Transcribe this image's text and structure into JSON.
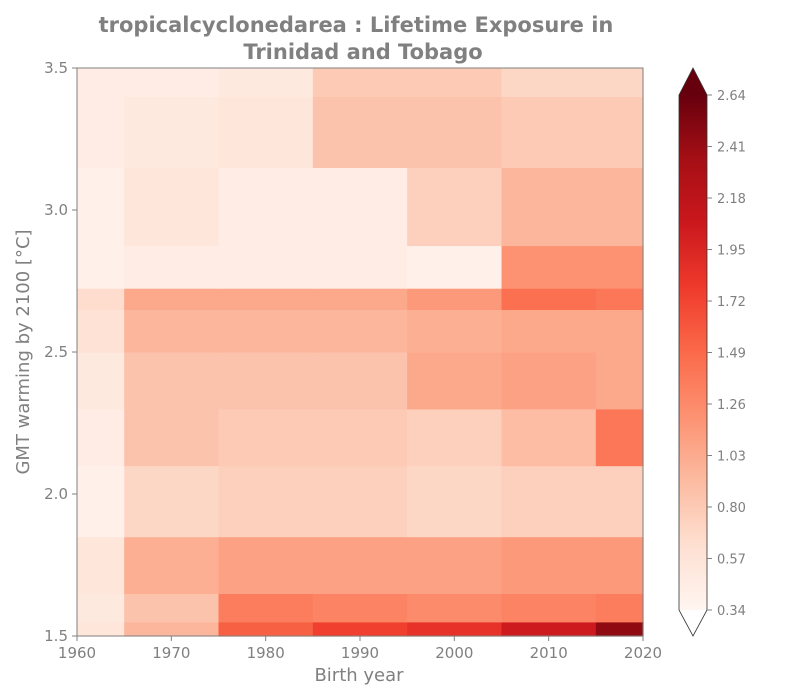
{
  "chart_data": {
    "type": "heatmap",
    "title_line1": "tropicalcyclonedarea : Lifetime Exposure in",
    "title_line2": "Trinidad and Tobago",
    "xlabel": "Birth year",
    "ylabel": "GMT warming by 2100 [°C]",
    "xlim": [
      1960,
      2020
    ],
    "ylim": [
      1.5,
      3.5
    ],
    "xticks": [
      "1960",
      "1970",
      "1980",
      "1990",
      "2000",
      "2010",
      "2020"
    ],
    "yticks": [
      "1.5",
      "2.0",
      "2.5",
      "3.0",
      "3.5"
    ],
    "colormap": "Reds",
    "colorbar": {
      "min": 0.34,
      "max": 2.64,
      "ticks": [
        "0.34",
        "0.57",
        "0.80",
        "1.03",
        "1.26",
        "1.49",
        "1.72",
        "1.95",
        "2.18",
        "2.41",
        "2.64"
      ],
      "extend": "both"
    },
    "x": [
      1960,
      1970,
      1980,
      1990,
      2000,
      2010,
      2020
    ],
    "y": [
      1.5,
      1.6,
      1.7,
      2.0,
      2.2,
      2.4,
      2.6,
      2.7,
      2.75,
      3.0,
      3.3,
      3.5
    ],
    "z": [
      [
        0.55,
        0.95,
        1.55,
        1.75,
        1.85,
        2.05,
        2.45
      ],
      [
        0.5,
        0.85,
        1.35,
        1.3,
        1.25,
        1.3,
        1.35
      ],
      [
        0.55,
        1.0,
        1.1,
        1.1,
        1.1,
        1.15,
        1.15
      ],
      [
        0.4,
        0.7,
        0.75,
        0.75,
        0.7,
        0.75,
        0.75
      ],
      [
        0.45,
        0.85,
        0.8,
        0.8,
        0.75,
        0.9,
        1.4
      ],
      [
        0.5,
        0.85,
        0.85,
        0.85,
        1.05,
        1.1,
        1.05
      ],
      [
        0.6,
        0.95,
        0.95,
        0.95,
        1.0,
        1.05,
        1.05
      ],
      [
        0.65,
        1.05,
        1.05,
        1.05,
        1.15,
        1.45,
        1.4
      ],
      [
        0.4,
        0.45,
        0.45,
        0.45,
        0.4,
        1.2,
        1.2
      ],
      [
        0.4,
        0.55,
        0.45,
        0.45,
        0.75,
        0.95,
        0.95
      ],
      [
        0.45,
        0.5,
        0.55,
        0.85,
        0.85,
        0.8,
        0.8
      ],
      [
        0.45,
        0.45,
        0.5,
        0.8,
        0.8,
        0.7,
        0.7
      ]
    ]
  }
}
